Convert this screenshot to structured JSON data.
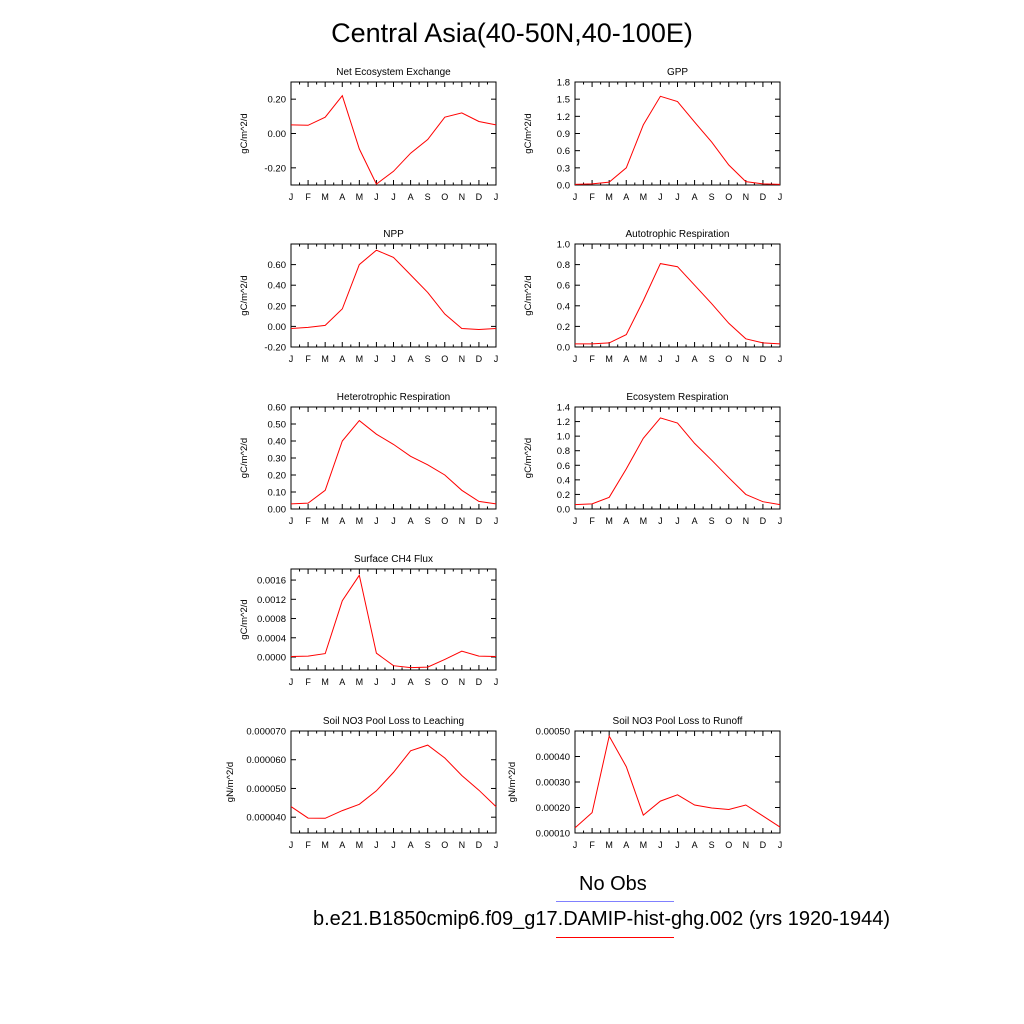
{
  "title": "Central Asia(40-50N,40-100E)",
  "months": [
    "J",
    "F",
    "M",
    "A",
    "M",
    "J",
    "J",
    "A",
    "S",
    "O",
    "N",
    "D",
    "J"
  ],
  "legend": {
    "obs_label": "No Obs",
    "obs_color": "#8080ff",
    "model_label": "b.e21.B1850cmip6.f09_g17.DAMIP-hist-ghg.002 (yrs 1920-1944)",
    "model_color": "#ff0000"
  },
  "chart_data": [
    {
      "type": "line",
      "title": "Net Ecosystem Exchange",
      "ylabel": "gC/m^2/d",
      "ylim": [
        -0.3,
        0.3
      ],
      "yticks": [
        "0.20",
        "0.00",
        "-0.20"
      ],
      "ytick_values": [
        0.2,
        0.0,
        -0.2
      ],
      "values": [
        0.05,
        0.048,
        0.095,
        0.22,
        -0.09,
        -0.295,
        -0.22,
        -0.115,
        -0.035,
        0.095,
        0.12,
        0.07,
        0.05
      ]
    },
    {
      "type": "line",
      "title": "GPP",
      "ylabel": "gC/m^2/d",
      "ylim": [
        0.0,
        1.8
      ],
      "yticks": [
        "1.8",
        "1.5",
        "1.2",
        "0.9",
        "0.6",
        "0.3",
        "0.0"
      ],
      "ytick_values": [
        1.8,
        1.5,
        1.2,
        0.9,
        0.6,
        0.3,
        0.0
      ],
      "values": [
        0.01,
        0.02,
        0.05,
        0.3,
        1.05,
        1.55,
        1.46,
        1.1,
        0.75,
        0.35,
        0.06,
        0.02,
        0.01
      ]
    },
    {
      "type": "line",
      "title": "NPP",
      "ylabel": "gC/m^2/d",
      "ylim": [
        -0.2,
        0.8
      ],
      "yticks": [
        "0.60",
        "0.40",
        "0.20",
        "0.00",
        "-0.20"
      ],
      "ytick_values": [
        0.6,
        0.4,
        0.2,
        0.0,
        -0.2
      ],
      "values": [
        -0.02,
        -0.01,
        0.01,
        0.17,
        0.6,
        0.74,
        0.67,
        0.5,
        0.33,
        0.12,
        -0.02,
        -0.03,
        -0.02
      ]
    },
    {
      "type": "line",
      "title": "Autotrophic Respiration",
      "ylabel": "gC/m^2/d",
      "ylim": [
        0.0,
        1.0
      ],
      "yticks": [
        "1.0",
        "0.8",
        "0.6",
        "0.4",
        "0.2",
        "0.0"
      ],
      "ytick_values": [
        1.0,
        0.8,
        0.6,
        0.4,
        0.2,
        0.0
      ],
      "values": [
        0.03,
        0.03,
        0.04,
        0.12,
        0.45,
        0.81,
        0.78,
        0.6,
        0.42,
        0.23,
        0.08,
        0.04,
        0.03
      ]
    },
    {
      "type": "line",
      "title": "Heterotrophic Respiration",
      "ylabel": "gC/m^2/d",
      "ylim": [
        0.0,
        0.6
      ],
      "yticks": [
        "0.60",
        "0.50",
        "0.40",
        "0.30",
        "0.20",
        "0.10",
        "0.00"
      ],
      "ytick_values": [
        0.6,
        0.5,
        0.4,
        0.3,
        0.2,
        0.1,
        0.0
      ],
      "values": [
        0.03,
        0.035,
        0.11,
        0.4,
        0.52,
        0.44,
        0.38,
        0.31,
        0.26,
        0.2,
        0.11,
        0.045,
        0.03
      ]
    },
    {
      "type": "line",
      "title": "Ecosystem Respiration",
      "ylabel": "gC/m^2/d",
      "ylim": [
        0.0,
        1.4
      ],
      "yticks": [
        "1.4",
        "1.2",
        "1.0",
        "0.8",
        "0.6",
        "0.4",
        "0.2",
        "0.0"
      ],
      "ytick_values": [
        1.4,
        1.2,
        1.0,
        0.8,
        0.6,
        0.4,
        0.2,
        0.0
      ],
      "values": [
        0.06,
        0.07,
        0.16,
        0.55,
        0.97,
        1.25,
        1.18,
        0.9,
        0.67,
        0.43,
        0.2,
        0.1,
        0.06
      ]
    },
    {
      "type": "line",
      "title": "Surface CH4 Flux",
      "ylabel": "gC/m^2/d",
      "ylim": [
        -0.00027,
        0.00183
      ],
      "yticks": [
        "0.0016",
        "0.0012",
        "0.0008",
        "0.0004",
        "0.0000"
      ],
      "ytick_values": [
        0.0016,
        0.0012,
        0.0008,
        0.0004,
        0.0
      ],
      "values": [
        1e-05,
        2e-05,
        7e-05,
        0.00117,
        0.0017,
        8e-05,
        -0.00018,
        -0.00022,
        -0.00021,
        -5e-05,
        0.00012,
        2e-05,
        1e-05
      ]
    },
    {
      "type": "line",
      "title": "Soil NO3 Pool Loss to Leaching",
      "ylabel": "gN/m^2/d",
      "ylim": [
        3.45e-05,
        7e-05
      ],
      "yticks": [
        "0.000070",
        "0.000060",
        "0.000050",
        "0.000040"
      ],
      "ytick_values": [
        7e-05,
        6e-05,
        5e-05,
        4e-05
      ],
      "values": [
        4.37e-05,
        3.97e-05,
        3.96e-05,
        4.23e-05,
        4.45e-05,
        4.92e-05,
        5.56e-05,
        6.31e-05,
        6.51e-05,
        6.06e-05,
        5.45e-05,
        4.94e-05,
        4.37e-05
      ]
    },
    {
      "type": "line",
      "title": "Soil NO3 Pool Loss to Runoff",
      "ylabel": "gN/m^2/d",
      "ylim": [
        0.0001,
        0.0005
      ],
      "yticks": [
        "0.00050",
        "0.00040",
        "0.00030",
        "0.00020",
        "0.00010"
      ],
      "ytick_values": [
        0.0005,
        0.0004,
        0.0003,
        0.0002,
        0.0001
      ],
      "values": [
        0.00012,
        0.00018,
        0.00048,
        0.00036,
        0.00017,
        0.000225,
        0.00025,
        0.00021,
        0.000198,
        0.000192,
        0.00021,
        0.000167,
        0.000123
      ]
    }
  ]
}
